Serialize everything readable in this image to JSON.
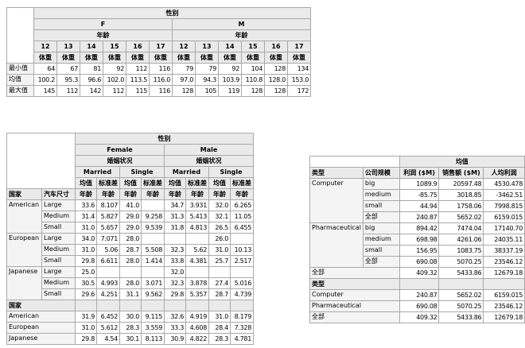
{
  "colors": {
    "background": "#ffffff",
    "text": "#000000",
    "border": "#a9a9a9",
    "header_bg": "#eaeaea",
    "stub_bg": "#f4f4f4"
  },
  "tables": [
    {
      "name": "weight-stats-by-gender-age-table",
      "rows": [
        [
          {
            "t": "",
            "k": "x",
            "rs": 5
          },
          {
            "t": "性别",
            "k": "h",
            "cs": 12
          }
        ],
        [
          {
            "t": "F",
            "k": "h",
            "cs": 6
          },
          {
            "t": "M",
            "k": "h",
            "cs": 6
          }
        ],
        [
          {
            "t": "年龄",
            "k": "h",
            "cs": 6
          },
          {
            "t": "年龄",
            "k": "h",
            "cs": 6
          }
        ],
        [
          {
            "t": "12",
            "k": "h"
          },
          {
            "t": "13",
            "k": "h"
          },
          {
            "t": "14",
            "k": "h"
          },
          {
            "t": "15",
            "k": "h"
          },
          {
            "t": "16",
            "k": "h"
          },
          {
            "t": "17",
            "k": "h"
          },
          {
            "t": "12",
            "k": "h"
          },
          {
            "t": "13",
            "k": "h"
          },
          {
            "t": "14",
            "k": "h"
          },
          {
            "t": "15",
            "k": "h"
          },
          {
            "t": "16",
            "k": "h"
          },
          {
            "t": "17",
            "k": "h"
          }
        ],
        [
          {
            "t": "体重",
            "k": "h"
          },
          {
            "t": "体重",
            "k": "h"
          },
          {
            "t": "体重",
            "k": "h"
          },
          {
            "t": "体重",
            "k": "h"
          },
          {
            "t": "体重",
            "k": "h"
          },
          {
            "t": "体重",
            "k": "h"
          },
          {
            "t": "体重",
            "k": "h"
          },
          {
            "t": "体重",
            "k": "h"
          },
          {
            "t": "体重",
            "k": "h"
          },
          {
            "t": "体重",
            "k": "h"
          },
          {
            "t": "体重",
            "k": "h"
          },
          {
            "t": "体重",
            "k": "h"
          }
        ],
        [
          {
            "t": "最小值",
            "k": "s"
          },
          "64",
          "67",
          "81",
          "92",
          "112",
          "116",
          "79",
          "79",
          "92",
          "104",
          "128",
          "134"
        ],
        [
          {
            "t": "均值",
            "k": "s"
          },
          "100.2",
          "95.3",
          "96.6",
          "102.0",
          "113.5",
          "116.0",
          "97.0",
          "94.3",
          "103.9",
          "110.8",
          "128.0",
          "153.0"
        ],
        [
          {
            "t": "最大值",
            "k": "s"
          },
          "145",
          "112",
          "142",
          "112",
          "115",
          "116",
          "128",
          "105",
          "119",
          "128",
          "128",
          "172"
        ]
      ]
    },
    {
      "name": "age-stats-by-gender-marital-table",
      "rows": [
        [
          {
            "t": "",
            "k": "x",
            "cs": 2,
            "rs": 5
          },
          {
            "t": "性别",
            "k": "h",
            "cs": 8
          }
        ],
        [
          {
            "t": "Female",
            "k": "h",
            "cs": 4
          },
          {
            "t": "Male",
            "k": "h",
            "cs": 4
          }
        ],
        [
          {
            "t": "婚姻状况",
            "k": "h",
            "cs": 4
          },
          {
            "t": "婚姻状况",
            "k": "h",
            "cs": 4
          }
        ],
        [
          {
            "t": "Married",
            "k": "h",
            "cs": 2
          },
          {
            "t": "Single",
            "k": "h",
            "cs": 2
          },
          {
            "t": "Married",
            "k": "h",
            "cs": 2
          },
          {
            "t": "Single",
            "k": "h",
            "cs": 2
          }
        ],
        [
          {
            "t": "均值",
            "k": "h"
          },
          {
            "t": "标准差",
            "k": "h"
          },
          {
            "t": "均值",
            "k": "h"
          },
          {
            "t": "标准差",
            "k": "h"
          },
          {
            "t": "均值",
            "k": "h"
          },
          {
            "t": "标准差",
            "k": "h"
          },
          {
            "t": "均值",
            "k": "h"
          },
          {
            "t": "标准差",
            "k": "h"
          }
        ],
        [
          {
            "t": "国家",
            "k": "hl"
          },
          {
            "t": "汽车尺寸",
            "k": "hl"
          },
          {
            "t": "年龄",
            "k": "h"
          },
          {
            "t": "年龄",
            "k": "h"
          },
          {
            "t": "年龄",
            "k": "h"
          },
          {
            "t": "年龄",
            "k": "h"
          },
          {
            "t": "年龄",
            "k": "h"
          },
          {
            "t": "年龄",
            "k": "h"
          },
          {
            "t": "年龄",
            "k": "h"
          },
          {
            "t": "年龄",
            "k": "h"
          }
        ],
        [
          {
            "t": "American",
            "k": "s",
            "rs": 3
          },
          {
            "t": "Large",
            "k": "s"
          },
          "33.6",
          "8.107",
          "41.0",
          "",
          "34.7",
          "3.931",
          "32.0",
          "6.265"
        ],
        [
          {
            "t": "Medium",
            "k": "s"
          },
          "31.4",
          "5.827",
          "29.0",
          "9.258",
          "31.3",
          "5.413",
          "32.1",
          "11.05"
        ],
        [
          {
            "t": "Small",
            "k": "s"
          },
          "31.0",
          "5.657",
          "29.0",
          "9.539",
          "31.8",
          "4.813",
          "26.5",
          "6.455"
        ],
        [
          {
            "t": "European",
            "k": "s",
            "rs": 3
          },
          {
            "t": "Large",
            "k": "s"
          },
          "34.0",
          "7.071",
          "28.0",
          "",
          "",
          "",
          "26.0",
          ""
        ],
        [
          {
            "t": "Medium",
            "k": "s"
          },
          "31.0",
          "5.06",
          "28.7",
          "5.508",
          "32.3",
          "5.62",
          "31.0",
          "10.13"
        ],
        [
          {
            "t": "Small",
            "k": "s"
          },
          "29.8",
          "6.611",
          "28.0",
          "1.414",
          "33.8",
          "4.381",
          "25.7",
          "2.517"
        ],
        [
          {
            "t": "Japanese",
            "k": "s",
            "rs": 3
          },
          {
            "t": "Large",
            "k": "s"
          },
          "25.0",
          "",
          "",
          "",
          "32.0",
          "",
          "",
          ""
        ],
        [
          {
            "t": "Medium",
            "k": "s"
          },
          "30.5",
          "4.993",
          "28.0",
          "3.071",
          "32.3",
          "3.878",
          "27.4",
          "5.016"
        ],
        [
          {
            "t": "Small",
            "k": "s"
          },
          "29.6",
          "4.251",
          "31.1",
          "9.562",
          "29.8",
          "5.357",
          "28.7",
          "4.739"
        ],
        [
          {
            "t": "国家",
            "k": "hl",
            "cs": 2
          },
          {
            "t": "",
            "k": "h"
          },
          {
            "t": "",
            "k": "h"
          },
          {
            "t": "",
            "k": "h"
          },
          {
            "t": "",
            "k": "h"
          },
          {
            "t": "",
            "k": "h"
          },
          {
            "t": "",
            "k": "h"
          },
          {
            "t": "",
            "k": "h"
          },
          {
            "t": "",
            "k": "h"
          }
        ],
        [
          {
            "t": "American",
            "k": "s",
            "cs": 2
          },
          "31.9",
          "6.452",
          "30.0",
          "9.115",
          "32.6",
          "4.919",
          "31.0",
          "8.179"
        ],
        [
          {
            "t": "European",
            "k": "s",
            "cs": 2
          },
          "31.0",
          "5.612",
          "28.3",
          "3.559",
          "33.3",
          "4.608",
          "28.4",
          "7.328"
        ],
        [
          {
            "t": "Japanese",
            "k": "s",
            "cs": 2
          },
          "29.8",
          "4.54",
          "30.1",
          "8.113",
          "30.9",
          "4.822",
          "28.3",
          "4.781"
        ]
      ]
    },
    {
      "name": "company-means-table",
      "rows": [
        [
          {
            "t": "",
            "k": "x",
            "cs": 2
          },
          {
            "t": "均值",
            "k": "h",
            "cs": 3
          }
        ],
        [
          {
            "t": "类型",
            "k": "hl"
          },
          {
            "t": "公司规模",
            "k": "hl"
          },
          {
            "t": "利润 ($M)",
            "k": "h"
          },
          {
            "t": "销售额 ($M)",
            "k": "h"
          },
          {
            "t": "人均利润",
            "k": "h"
          }
        ],
        [
          {
            "t": "Computer",
            "k": "s",
            "rs": 4
          },
          {
            "t": "big",
            "k": "s"
          },
          "1089.9",
          "20597.48",
          "4530.478"
        ],
        [
          {
            "t": "medium",
            "k": "s"
          },
          "-85.75",
          "3018.85",
          "-3462.51"
        ],
        [
          {
            "t": "small",
            "k": "s"
          },
          "44.94",
          "1758.06",
          "7998.815"
        ],
        [
          {
            "t": "全部",
            "k": "s"
          },
          "240.87",
          "5652.02",
          "6159.015"
        ],
        [
          {
            "t": "Pharmaceutical",
            "k": "s",
            "rs": 4
          },
          {
            "t": "big",
            "k": "s"
          },
          "894.42",
          "7474.04",
          "17140.70"
        ],
        [
          {
            "t": "medium",
            "k": "s"
          },
          "698.98",
          "4261.06",
          "24035.11"
        ],
        [
          {
            "t": "small",
            "k": "s"
          },
          "156.95",
          "1083.75",
          "38337.19"
        ],
        [
          {
            "t": "全部",
            "k": "s"
          },
          "690.08",
          "5070.25",
          "23546.12"
        ],
        [
          {
            "t": "全部",
            "k": "s",
            "cs": 2
          },
          "409.32",
          "5433.86",
          "12679.18"
        ],
        [
          {
            "t": "类型",
            "k": "hl",
            "cs": 2
          },
          {
            "t": "",
            "k": "h"
          },
          {
            "t": "",
            "k": "h"
          },
          {
            "t": "",
            "k": "h"
          }
        ],
        [
          {
            "t": "Computer",
            "k": "s",
            "cs": 2
          },
          "240.87",
          "5652.02",
          "6159.015"
        ],
        [
          {
            "t": "Pharmaceutical",
            "k": "s",
            "cs": 2
          },
          "690.08",
          "5070.25",
          "23546.12"
        ],
        [
          {
            "t": "全部",
            "k": "s",
            "cs": 2
          },
          "409.32",
          "5433.86",
          "12679.18"
        ]
      ]
    }
  ]
}
